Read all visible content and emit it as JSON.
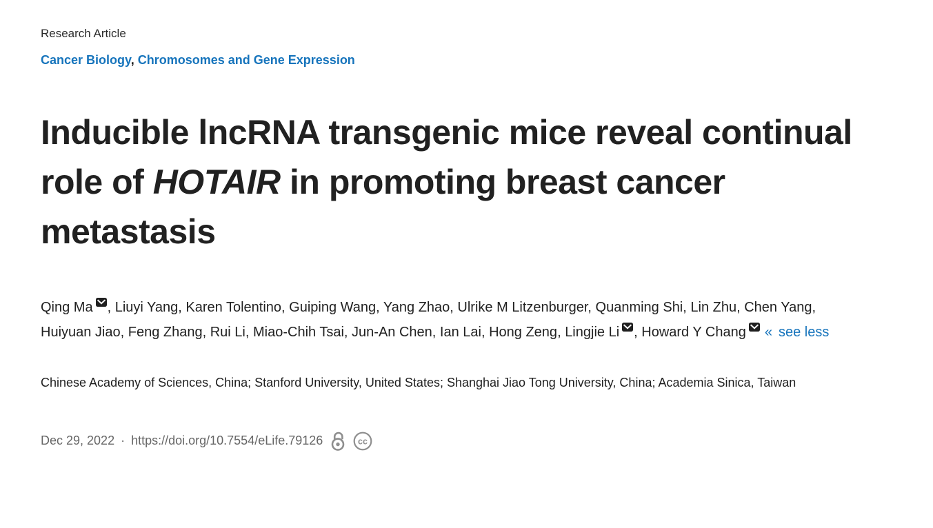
{
  "article": {
    "type_label": "Research Article",
    "subjects": {
      "items": [
        {
          "label": "Cancer Biology"
        },
        {
          "label": "Chromosomes and Gene Expression"
        }
      ],
      "separator": ", "
    },
    "title": {
      "part1": "Inducible lncRNA transgenic mice reveal continual role of ",
      "gene_italic": "HOTAIR",
      "part2": " in promoting breast cancer metastasis"
    },
    "authors": {
      "list": [
        {
          "name": "Qing Ma",
          "corresponding": true
        },
        {
          "name": "Liuyi Yang",
          "corresponding": false
        },
        {
          "name": "Karen Tolentino",
          "corresponding": false
        },
        {
          "name": "Guiping Wang",
          "corresponding": false
        },
        {
          "name": "Yang Zhao",
          "corresponding": false
        },
        {
          "name": "Ulrike M Litzenburger",
          "corresponding": false
        },
        {
          "name": "Quanming Shi",
          "corresponding": false
        },
        {
          "name": "Lin Zhu",
          "corresponding": false
        },
        {
          "name": "Chen Yang",
          "corresponding": false
        },
        {
          "name": "Huiyuan Jiao",
          "corresponding": false
        },
        {
          "name": "Feng Zhang",
          "corresponding": false
        },
        {
          "name": "Rui Li",
          "corresponding": false
        },
        {
          "name": "Miao-Chih Tsai",
          "corresponding": false
        },
        {
          "name": "Jun-An Chen",
          "corresponding": false
        },
        {
          "name": "Ian Lai",
          "corresponding": false
        },
        {
          "name": "Hong Zeng",
          "corresponding": false
        },
        {
          "name": "Lingjie Li",
          "corresponding": true
        },
        {
          "name": "Howard Y Chang",
          "corresponding": true
        }
      ],
      "separator": ", ",
      "collapse_chevron": "«",
      "collapse_label": "see less"
    },
    "affiliations": "Chinese Academy of Sciences, China; Stanford University, United States; Shanghai Jiao Tong University, China; Academia Sinica, Taiwan",
    "meta": {
      "date": "Dec 29, 2022",
      "separator": "·",
      "doi": "https://doi.org/10.7554/eLife.79126",
      "icons": [
        "open-access-icon",
        "creative-commons-icon"
      ]
    },
    "colors": {
      "link_blue": "#1674bc",
      "heading_text": "#212121",
      "muted_text": "#666666",
      "icon_gray": "#8e8e8e",
      "envelope_fill": "#1f1f1f"
    }
  }
}
